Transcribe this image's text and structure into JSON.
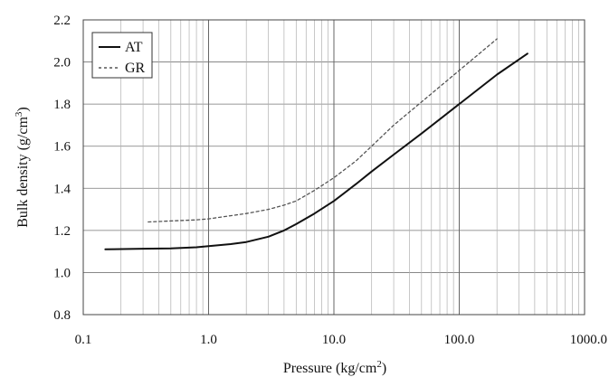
{
  "chart_data": {
    "type": "line",
    "x_scale": "log",
    "xlabel": "Pressure (kg/cm",
    "xlabel_sup": "2",
    "xlabel_suffix": ")",
    "ylabel": "Bulk density (g/cm",
    "ylabel_sup": "3",
    "ylabel_suffix": ")",
    "xlim": [
      0.1,
      1000
    ],
    "ylim": [
      0.8,
      2.2
    ],
    "x_ticks": [
      0.1,
      1,
      10,
      100,
      1000
    ],
    "x_tick_labels": [
      "0.1",
      "1.0",
      "10.0",
      "100.0",
      "1000.0"
    ],
    "y_ticks": [
      0.8,
      1.0,
      1.2,
      1.4,
      1.6,
      1.8,
      2.0,
      2.2
    ],
    "y_tick_labels": [
      "0.8",
      "1.0",
      "1.2",
      "1.4",
      "1.6",
      "1.8",
      "2.0",
      "2.2"
    ],
    "grid": true,
    "legend_position": "top-left",
    "series": [
      {
        "name": "AT",
        "style": "solid",
        "color": "#111111",
        "x": [
          0.15,
          0.3,
          0.5,
          0.8,
          1.0,
          1.5,
          2.0,
          3.0,
          4.0,
          5.0,
          7.0,
          10,
          15,
          20,
          30,
          50,
          100,
          200,
          350
        ],
        "y": [
          1.11,
          1.113,
          1.115,
          1.12,
          1.125,
          1.135,
          1.145,
          1.17,
          1.2,
          1.23,
          1.28,
          1.34,
          1.42,
          1.48,
          1.56,
          1.66,
          1.8,
          1.94,
          2.04
        ]
      },
      {
        "name": "GR",
        "style": "dashed",
        "color": "#555555",
        "x": [
          0.33,
          0.5,
          0.8,
          1.0,
          1.5,
          2.0,
          3.0,
          4.0,
          5.0,
          7.0,
          10,
          15,
          20,
          30,
          50,
          100,
          200
        ],
        "y": [
          1.24,
          1.245,
          1.25,
          1.255,
          1.27,
          1.28,
          1.3,
          1.32,
          1.34,
          1.39,
          1.45,
          1.53,
          1.6,
          1.7,
          1.81,
          1.96,
          2.11
        ]
      }
    ]
  }
}
